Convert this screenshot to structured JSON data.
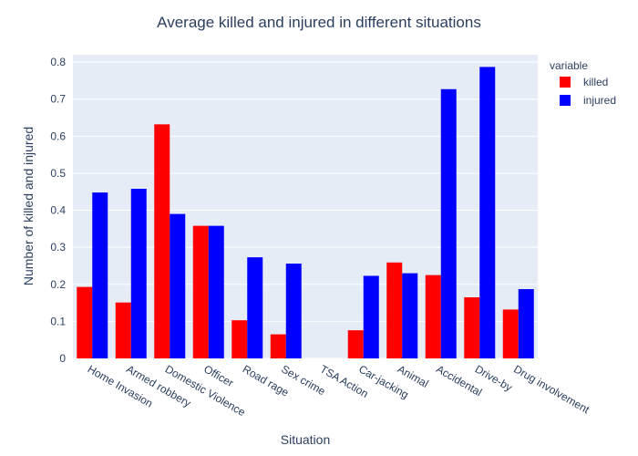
{
  "chart_data": {
    "type": "bar",
    "title": "Average killed and injured in different situations",
    "xlabel": "Situation",
    "ylabel": "Number of killed and injured",
    "legend_title": "variable",
    "legend_position": "top-right",
    "ylim": [
      0,
      0.82
    ],
    "yticks": [
      0,
      0.1,
      0.2,
      0.3,
      0.4,
      0.5,
      0.6,
      0.7,
      0.8
    ],
    "ytick_labels": [
      "0",
      "0.1",
      "0.2",
      "0.3",
      "0.4",
      "0.5",
      "0.6",
      "0.7",
      "0.8"
    ],
    "grid": true,
    "background_color": "#e5ecf6",
    "categories": [
      "Home Invasion",
      "Armed robbery",
      "Domestic Violence",
      "Officer",
      "Road rage",
      "Sex crime",
      "TSA Action",
      "Car-jacking",
      "Animal",
      "Accidental",
      "Drive-by",
      "Drug involvement"
    ],
    "series": [
      {
        "name": "killed",
        "color": "#ff0000",
        "values": [
          0.193,
          0.151,
          0.632,
          0.358,
          0.103,
          0.065,
          0.0,
          0.076,
          0.259,
          0.225,
          0.165,
          0.132
        ]
      },
      {
        "name": "injured",
        "color": "#0000ff",
        "values": [
          0.448,
          0.458,
          0.39,
          0.358,
          0.273,
          0.256,
          0.0,
          0.223,
          0.23,
          0.727,
          0.787,
          0.187
        ]
      }
    ]
  }
}
